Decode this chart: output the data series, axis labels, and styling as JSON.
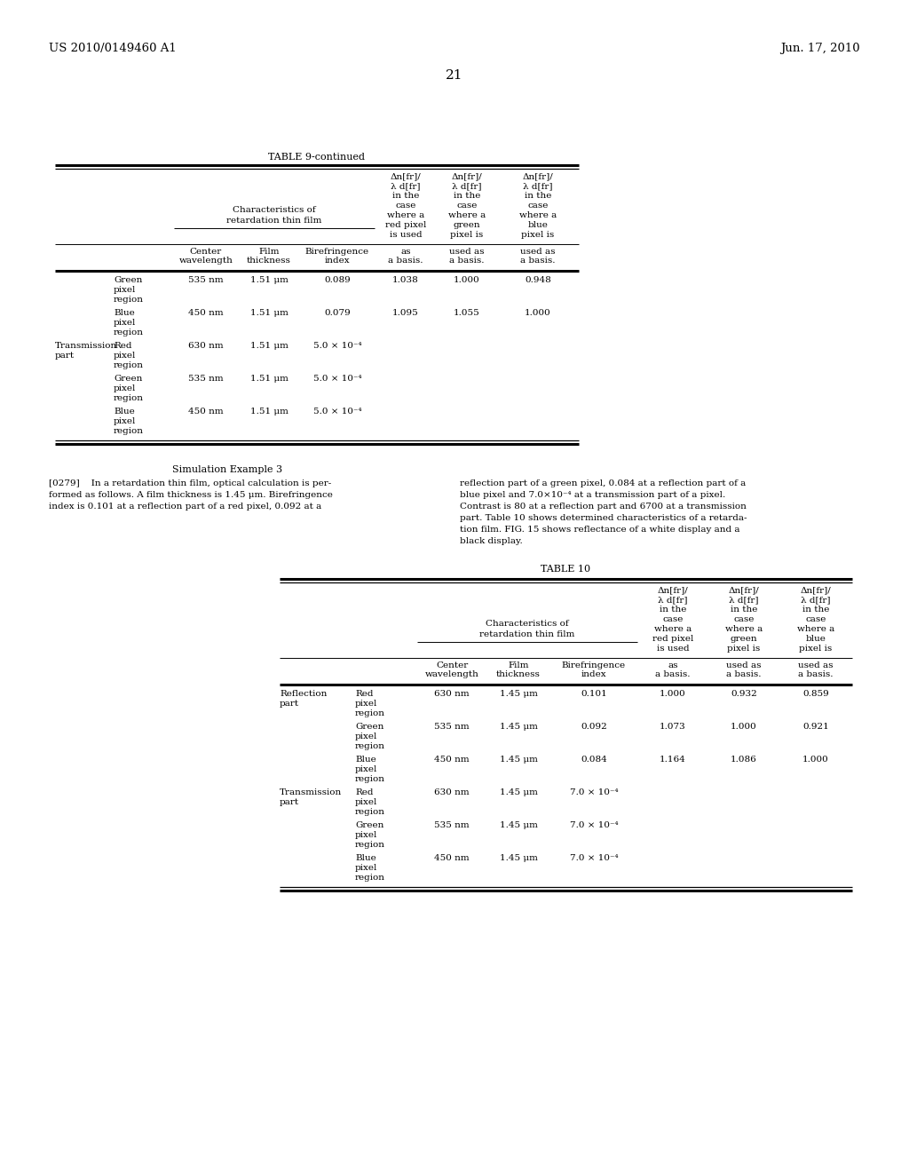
{
  "page_header_left": "US 2010/0149460 A1",
  "page_header_right": "Jun. 17, 2010",
  "page_number": "21",
  "table1_title": "TABLE 9-continued",
  "table2_title": "TABLE 10",
  "sim_example_title": "Simulation Example 3",
  "left_text_lines": [
    "[0279]    In a retardation thin film, optical calculation is per-",
    "formed as follows. A film thickness is 1.45 μm. Birefringence",
    "index is 0.101 at a reflection part of a red pixel, 0.092 at a"
  ],
  "right_text_lines": [
    "reflection part of a green pixel, 0.084 at a reflection part of a",
    "blue pixel and 7.0×10⁻⁴ at a transmission part of a pixel.",
    "Contrast is 80 at a reflection part and 6700 at a transmission",
    "part. Table 10 shows determined characteristics of a retarda-",
    "tion film. FIG. 15 shows reflectance of a white display and a",
    "black display."
  ],
  "delta_red": [
    "Δn[fr]/",
    "λ d[fr]",
    "in the",
    "case",
    "where a",
    "red pixel",
    "is used"
  ],
  "delta_green": [
    "Δn[fr]/",
    "λ d[fr]",
    "in the",
    "case",
    "where a",
    "green",
    "pixel is"
  ],
  "delta_blue": [
    "Δn[fr]/",
    "λ d[fr]",
    "in the",
    "case",
    "where a",
    "blue",
    "pixel is"
  ],
  "table1_rows": [
    [
      "",
      "Green\npixel\nregion",
      "535 nm",
      "1.51 μm",
      "0.089",
      "1.038",
      "1.000",
      "0.948"
    ],
    [
      "",
      "Blue\npixel\nregion",
      "450 nm",
      "1.51 μm",
      "0.079",
      "1.095",
      "1.055",
      "1.000"
    ],
    [
      "Transmission\npart",
      "Red\npixel\nregion",
      "630 nm",
      "1.51 μm",
      "5.0 × 10⁻⁴",
      "",
      "",
      ""
    ],
    [
      "",
      "Green\npixel\nregion",
      "535 nm",
      "1.51 μm",
      "5.0 × 10⁻⁴",
      "",
      "",
      ""
    ],
    [
      "",
      "Blue\npixel\nregion",
      "450 nm",
      "1.51 μm",
      "5.0 × 10⁻⁴",
      "",
      "",
      ""
    ]
  ],
  "table2_rows": [
    [
      "Reflection\npart",
      "Red\npixel\nregion",
      "630 nm",
      "1.45 μm",
      "0.101",
      "1.000",
      "0.932",
      "0.859"
    ],
    [
      "",
      "Green\npixel\nregion",
      "535 nm",
      "1.45 μm",
      "0.092",
      "1.073",
      "1.000",
      "0.921"
    ],
    [
      "",
      "Blue\npixel\nregion",
      "450 nm",
      "1.45 μm",
      "0.084",
      "1.164",
      "1.086",
      "1.000"
    ],
    [
      "Transmission\npart",
      "Red\npixel\nregion",
      "630 nm",
      "1.45 μm",
      "7.0 × 10⁻⁴",
      "",
      "",
      ""
    ],
    [
      "",
      "Green\npixel\nregion",
      "535 nm",
      "1.45 μm",
      "7.0 × 10⁻⁴",
      "",
      "",
      ""
    ],
    [
      "",
      "Blue\npixel\nregion",
      "450 nm",
      "1.45 μm",
      "7.0 × 10⁻⁴",
      "",
      "",
      ""
    ]
  ],
  "bg_color": "#ffffff",
  "text_color": "#000000"
}
